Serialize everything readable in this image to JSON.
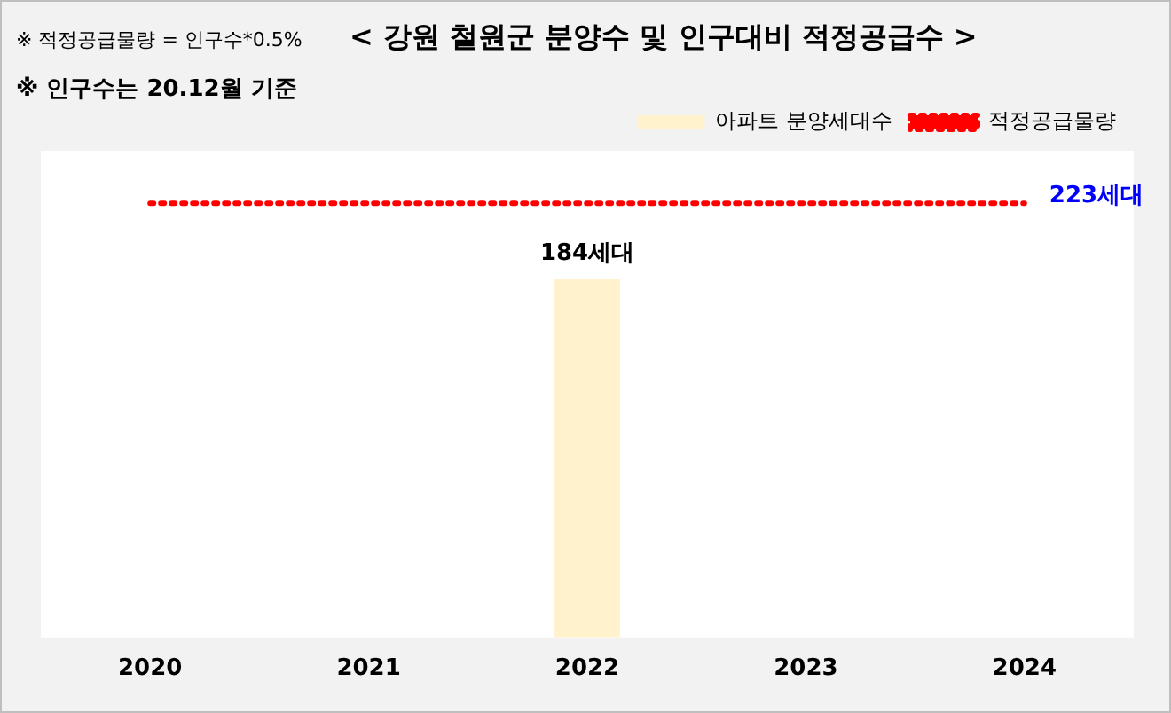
{
  "chart_data": {
    "type": "bar",
    "title": "< 강원 철원군 분양수 및 인구대비 적정공급수 >",
    "annotations": [
      "※ 적정공급물량 = 인구수*0.5%",
      "※ 인구수는 20.12월 기준"
    ],
    "categories": [
      "2020",
      "2021",
      "2022",
      "2023",
      "2024"
    ],
    "series": [
      {
        "name": "아파트 분양세대수",
        "color": "#fff2cc",
        "values": [
          null,
          null,
          184,
          null,
          null
        ],
        "value_labels": [
          null,
          null,
          "184세대",
          null,
          null
        ]
      },
      {
        "name": "적정공급물량",
        "type": "line",
        "color": "#ff0000",
        "line_style": "dotted",
        "values": [
          223,
          223,
          223,
          223,
          223
        ],
        "value_labels": [
          null,
          null,
          null,
          null,
          "223세대"
        ]
      }
    ],
    "ylim": [
      0,
      250
    ],
    "tick_labels": "x",
    "grid": false,
    "legend": "top right",
    "marker": "none"
  }
}
